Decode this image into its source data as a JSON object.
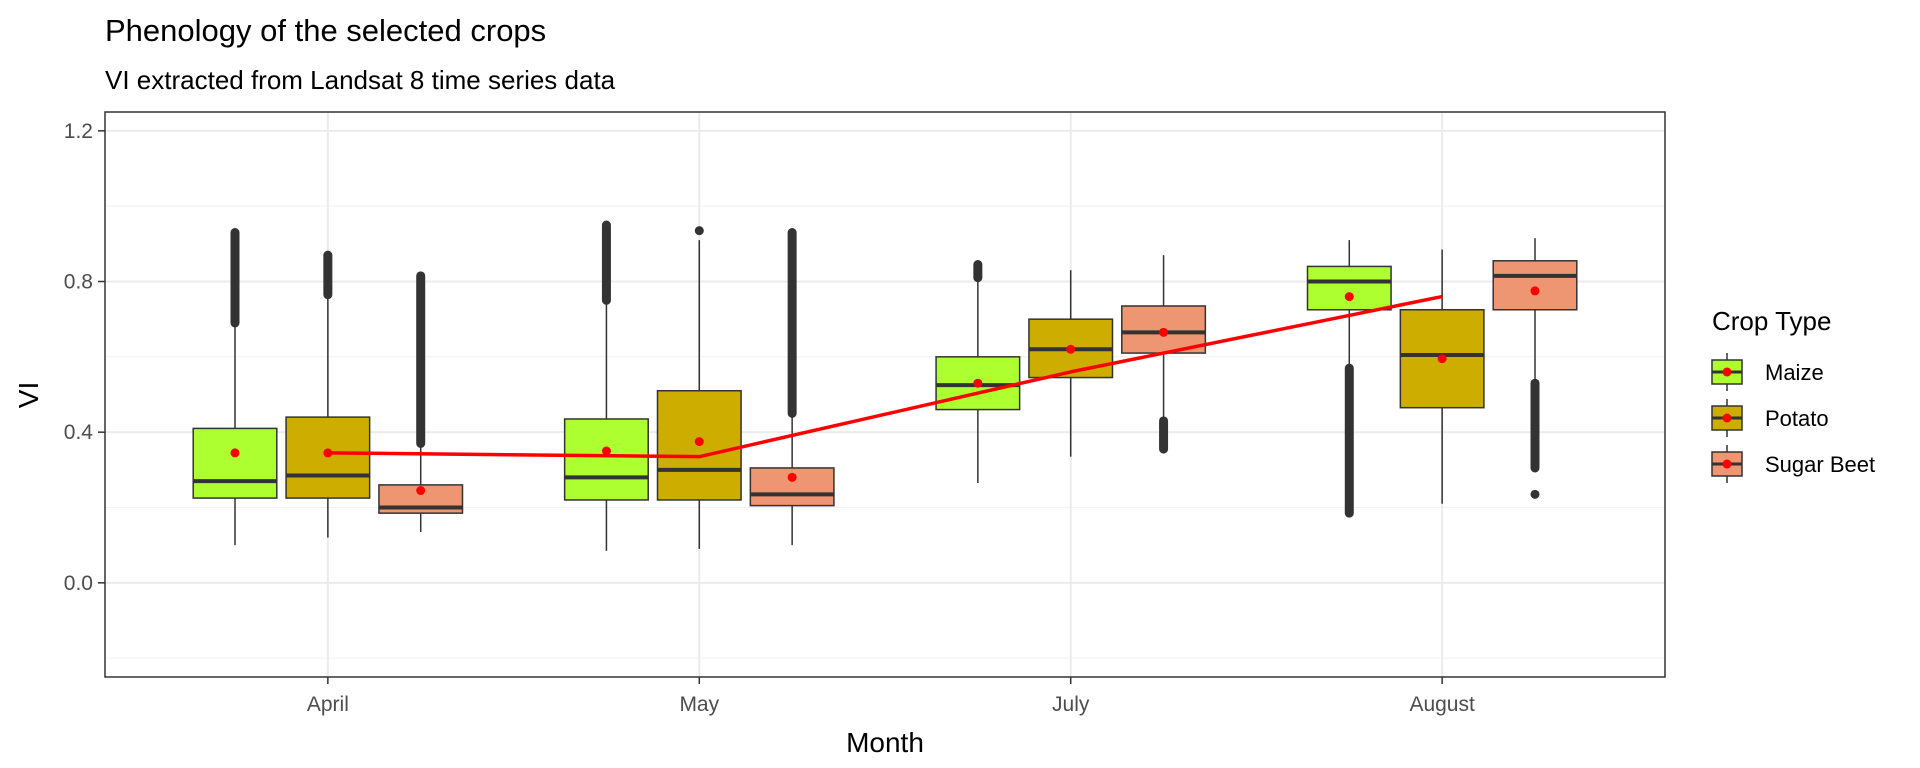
{
  "chart_data": {
    "type": "boxplot",
    "title": "Phenology of the selected crops",
    "subtitle": "VI extracted from Landsat 8 time series data",
    "xlabel": "Month",
    "ylabel": "VI",
    "categories": [
      "April",
      "May",
      "July",
      "August"
    ],
    "ylim": [
      -0.25,
      1.25
    ],
    "yticks": [
      0.0,
      0.4,
      0.8,
      1.2
    ],
    "ytick_labels": [
      "0.0",
      "0.4",
      "0.8",
      "1.2"
    ],
    "grid": true,
    "legend": {
      "title": "Crop Type",
      "position": "right"
    },
    "mean_point_color": "#ff0000",
    "series": [
      {
        "name": "Maize",
        "color": "#adff2f",
        "boxes": [
          {
            "q1": 0.225,
            "median": 0.27,
            "q3": 0.41,
            "whisker_low": 0.1,
            "whisker_high": 0.69,
            "mean": 0.345,
            "outliers_low": [],
            "outliers_high": [
              0.69,
              0.93
            ]
          },
          {
            "q1": 0.22,
            "median": 0.28,
            "q3": 0.435,
            "whisker_low": 0.085,
            "whisker_high": 0.75,
            "mean": 0.35,
            "outliers_low": [],
            "outliers_high": [
              0.75,
              0.95
            ]
          },
          {
            "q1": 0.46,
            "median": 0.525,
            "q3": 0.6,
            "whisker_low": 0.265,
            "whisker_high": 0.81,
            "mean": 0.53,
            "outliers_low": [],
            "outliers_high": [
              0.81,
              0.845
            ]
          },
          {
            "q1": 0.725,
            "median": 0.8,
            "q3": 0.84,
            "whisker_low": 0.57,
            "whisker_high": 0.91,
            "mean": 0.76,
            "outliers_low": [
              0.185,
              0.57
            ],
            "outliers_high": []
          }
        ]
      },
      {
        "name": "Potato",
        "color": "#cdad00",
        "boxes": [
          {
            "q1": 0.225,
            "median": 0.285,
            "q3": 0.44,
            "whisker_low": 0.12,
            "whisker_high": 0.765,
            "mean": 0.345,
            "outliers_low": [],
            "outliers_high": [
              0.765,
              0.87
            ]
          },
          {
            "q1": 0.22,
            "median": 0.3,
            "q3": 0.51,
            "whisker_low": 0.09,
            "whisker_high": 0.91,
            "mean": 0.375,
            "outliers_low": [],
            "outliers_high": [
              0.935
            ]
          },
          {
            "q1": 0.545,
            "median": 0.62,
            "q3": 0.7,
            "whisker_low": 0.335,
            "whisker_high": 0.83,
            "mean": 0.62,
            "outliers_low": [],
            "outliers_high": []
          },
          {
            "q1": 0.465,
            "median": 0.605,
            "q3": 0.725,
            "whisker_low": 0.21,
            "whisker_high": 0.885,
            "mean": 0.595,
            "outliers_low": [],
            "outliers_high": []
          }
        ]
      },
      {
        "name": "Sugar Beet",
        "color": "#ee9572",
        "boxes": [
          {
            "q1": 0.185,
            "median": 0.2,
            "q3": 0.26,
            "whisker_low": 0.135,
            "whisker_high": 0.37,
            "mean": 0.245,
            "outliers_low": [],
            "outliers_high": [
              0.37,
              0.815
            ]
          },
          {
            "q1": 0.205,
            "median": 0.235,
            "q3": 0.305,
            "whisker_low": 0.1,
            "whisker_high": 0.45,
            "mean": 0.28,
            "outliers_low": [],
            "outliers_high": [
              0.45,
              0.93
            ]
          },
          {
            "q1": 0.61,
            "median": 0.665,
            "q3": 0.735,
            "whisker_low": 0.44,
            "whisker_high": 0.87,
            "mean": 0.665,
            "outliers_low": [
              0.355,
              0.43
            ],
            "outliers_high": []
          },
          {
            "q1": 0.725,
            "median": 0.815,
            "q3": 0.855,
            "whisker_low": 0.53,
            "whisker_high": 0.915,
            "mean": 0.775,
            "outliers_low": [
              0.235,
              0.305,
              0.53
            ],
            "outliers_high": []
          }
        ]
      }
    ],
    "trend_line": {
      "color": "#ff0000",
      "values": [
        0.345,
        0.335,
        0.56,
        0.76
      ]
    }
  }
}
